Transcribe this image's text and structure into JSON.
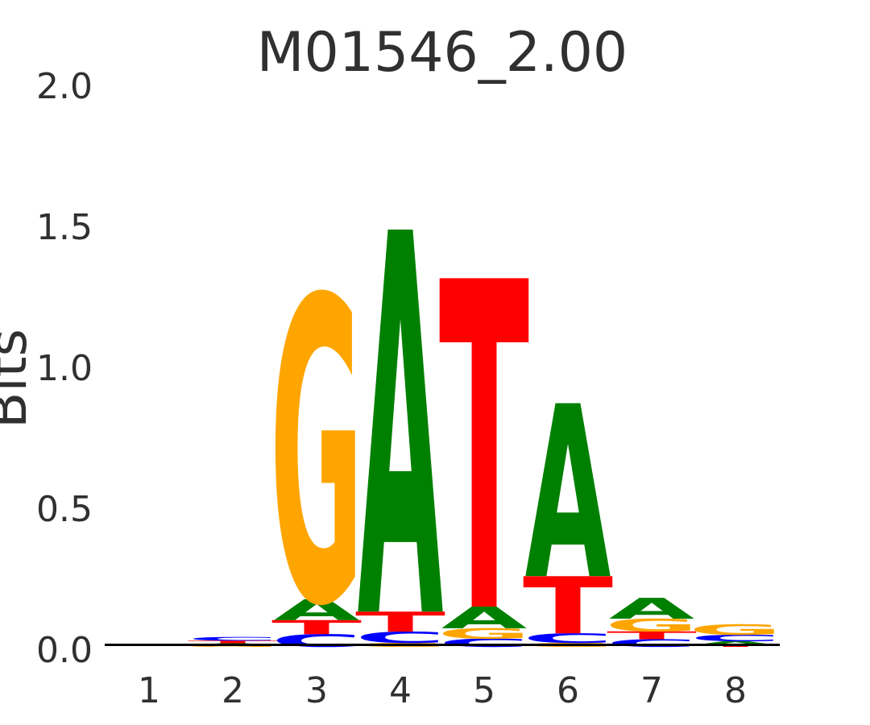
{
  "figure": {
    "background": "#FFFFFF",
    "axis_color": "#000000",
    "label_color": "#303030"
  },
  "chart_data": {
    "type": "sequence-logo",
    "title": "M01546_2.00",
    "ylabel": "Bits",
    "ylim": [
      0,
      2
    ],
    "yticks": [
      "0.0",
      "0.5",
      "1.0",
      "1.5",
      "2.0"
    ],
    "xticks": [
      "1",
      "2",
      "3",
      "4",
      "5",
      "6",
      "7",
      "8"
    ],
    "legend": "none",
    "grid": false,
    "letter_colors": {
      "A": "#008000",
      "C": "#0000FF",
      "G": "#FFA500",
      "T": "#FF0000"
    },
    "stacks": [
      {
        "position": 1,
        "letters": [
          {
            "base": "A",
            "bits": 0.0
          },
          {
            "base": "C",
            "bits": 0.0
          },
          {
            "base": "G",
            "bits": 0.0
          },
          {
            "base": "T",
            "bits": 0.0
          }
        ]
      },
      {
        "position": 2,
        "letters": [
          {
            "base": "G",
            "bits": 0.005
          },
          {
            "base": "A",
            "bits": 0.008
          },
          {
            "base": "T",
            "bits": 0.009
          },
          {
            "base": "C",
            "bits": 0.013
          }
        ]
      },
      {
        "position": 3,
        "letters": [
          {
            "base": "C",
            "bits": 0.045
          },
          {
            "base": "T",
            "bits": 0.05
          },
          {
            "base": "A",
            "bits": 0.074
          },
          {
            "base": "G",
            "bits": 1.08
          }
        ]
      },
      {
        "position": 4,
        "letters": [
          {
            "base": "G",
            "bits": 0.014
          },
          {
            "base": "C",
            "bits": 0.04
          },
          {
            "base": "T",
            "bits": 0.071
          },
          {
            "base": "A",
            "bits": 1.357
          }
        ]
      },
      {
        "position": 5,
        "letters": [
          {
            "base": "C",
            "bits": 0.029
          },
          {
            "base": "G",
            "bits": 0.037
          },
          {
            "base": "A",
            "bits": 0.077
          },
          {
            "base": "T",
            "bits": 1.166
          }
        ]
      },
      {
        "position": 6,
        "letters": [
          {
            "base": "G",
            "bits": 0.014
          },
          {
            "base": "C",
            "bits": 0.034
          },
          {
            "base": "T",
            "bits": 0.203
          },
          {
            "base": "A",
            "bits": 0.614
          }
        ]
      },
      {
        "position": 7,
        "letters": [
          {
            "base": "C",
            "bits": 0.027
          },
          {
            "base": "T",
            "bits": 0.028
          },
          {
            "base": "G",
            "bits": 0.045
          },
          {
            "base": "A",
            "bits": 0.074
          }
        ]
      },
      {
        "position": 8,
        "letters": [
          {
            "base": "T",
            "bits": 0.006
          },
          {
            "base": "A",
            "bits": 0.014
          },
          {
            "base": "C",
            "bits": 0.023
          },
          {
            "base": "G",
            "bits": 0.037
          }
        ]
      }
    ]
  }
}
